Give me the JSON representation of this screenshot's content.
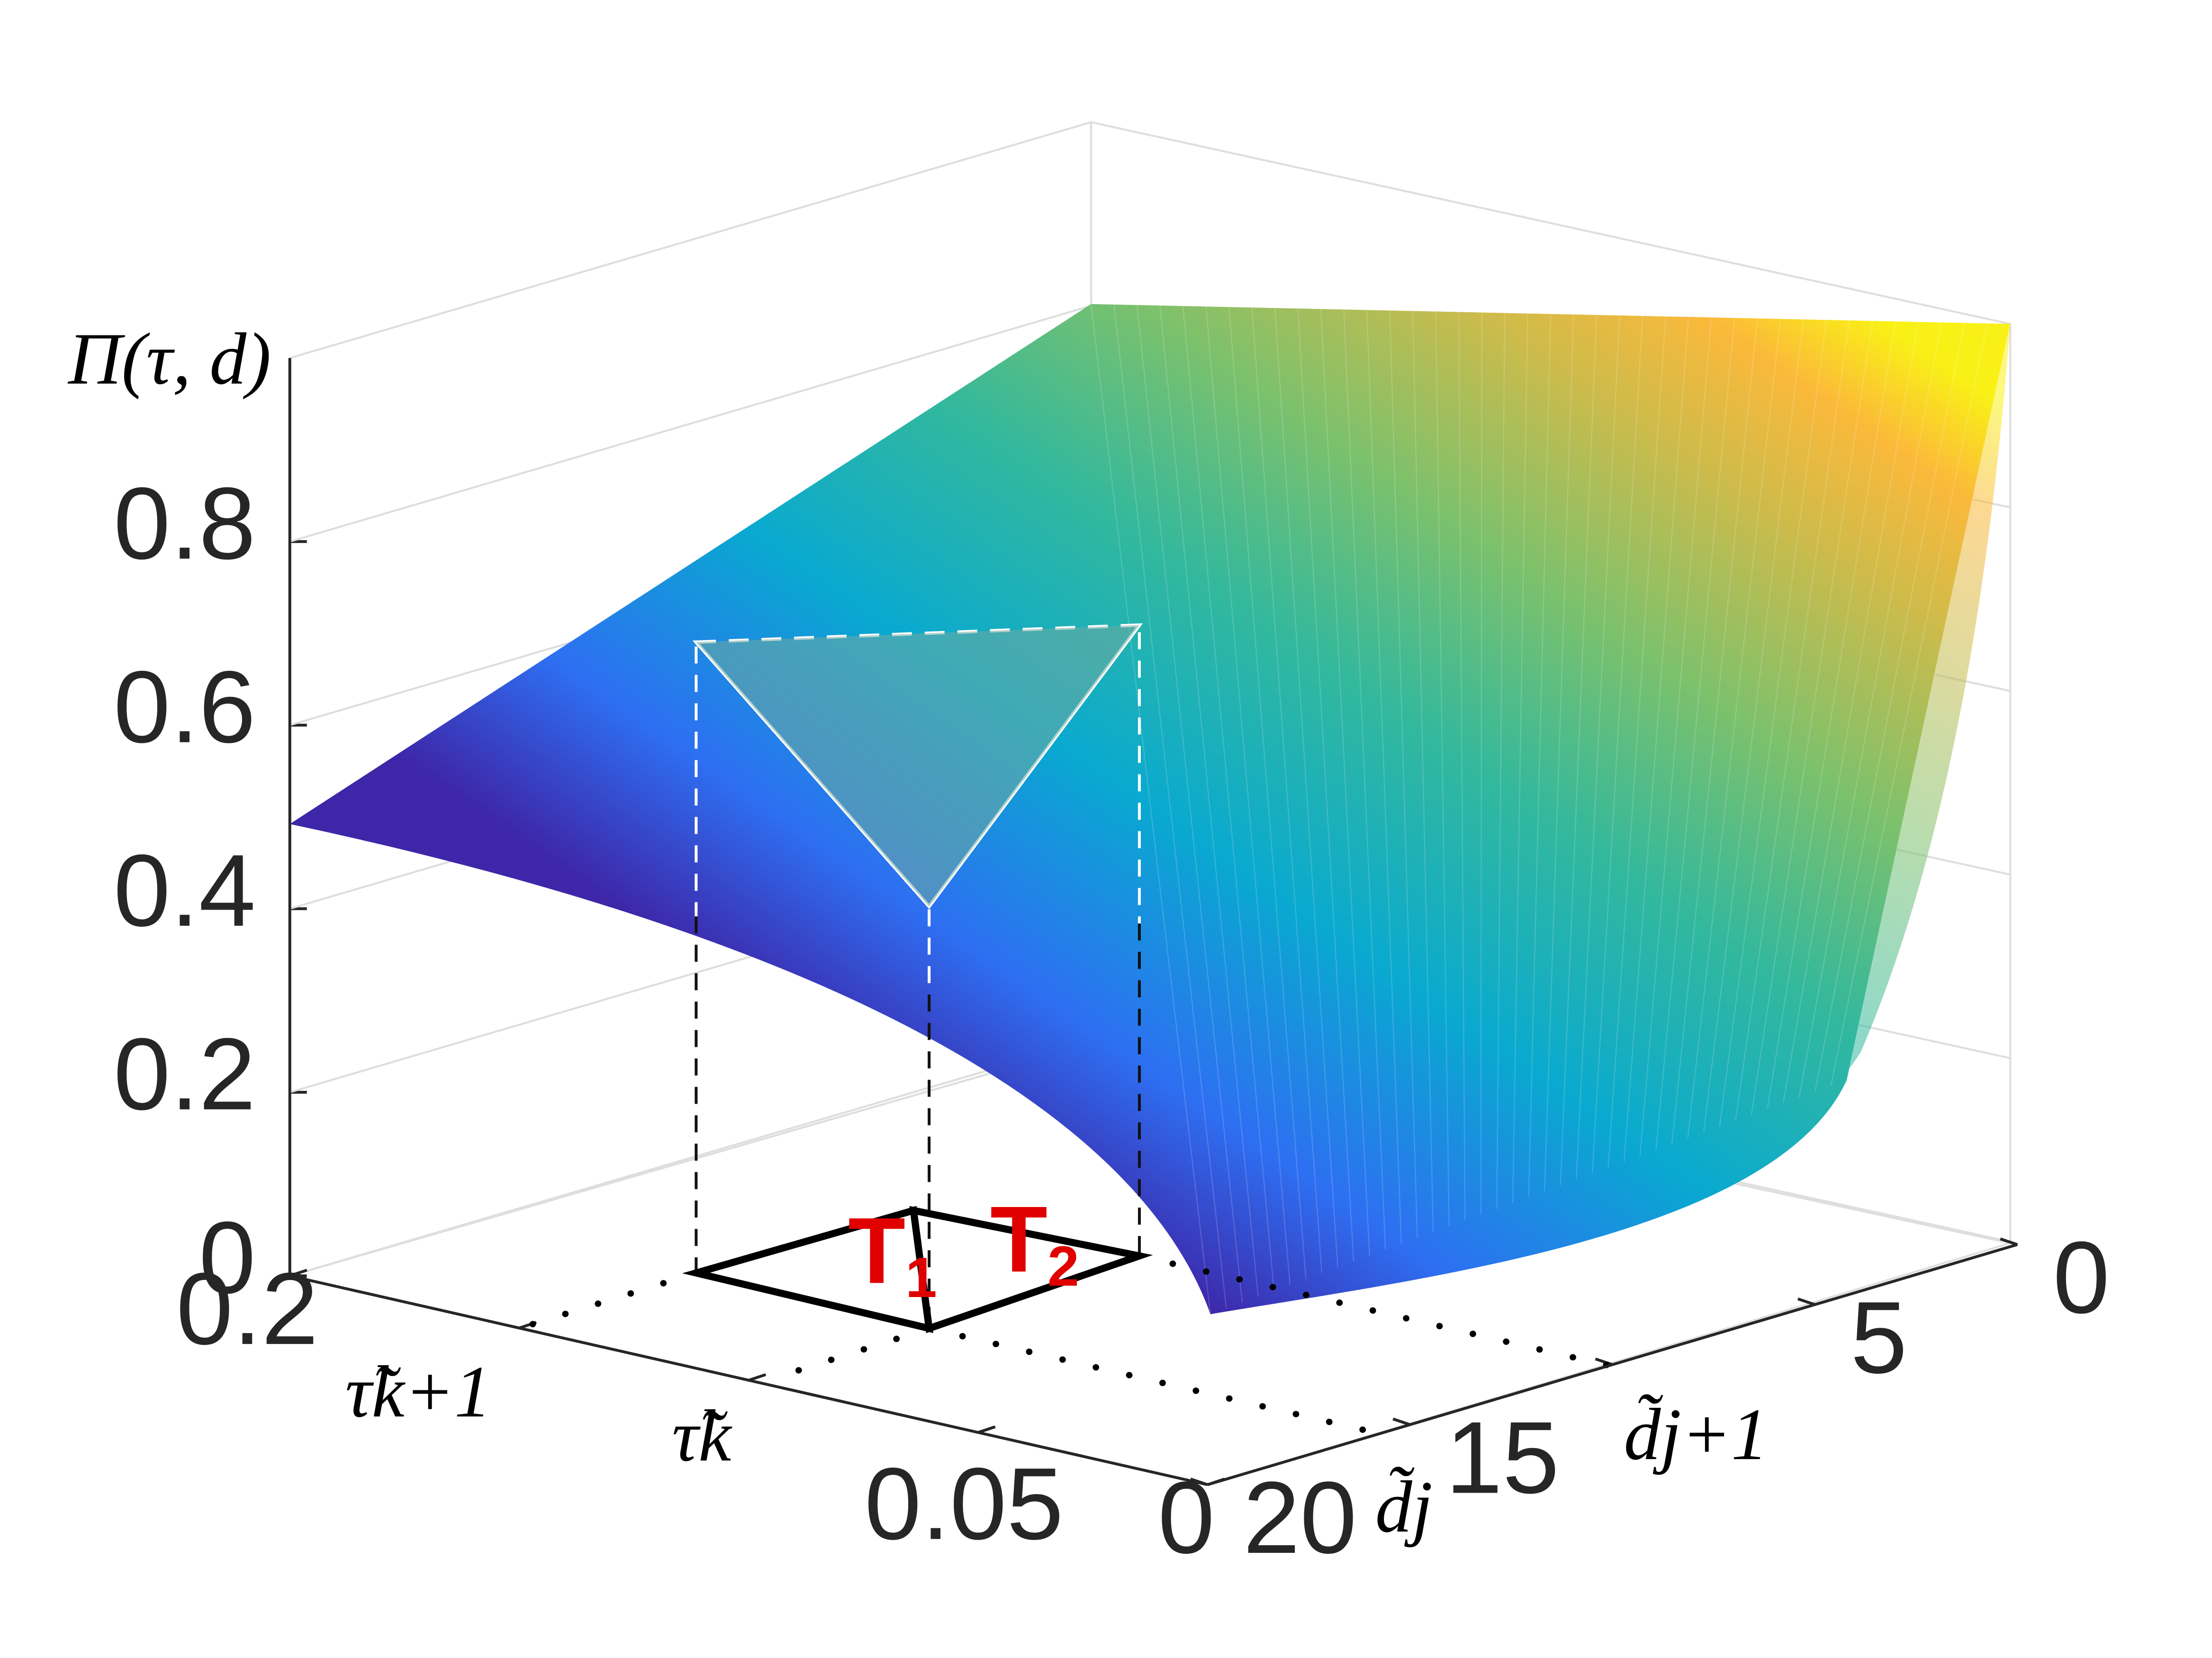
{
  "chart_data": {
    "type": "surface",
    "title": "",
    "zlabel": "Π(τ, d)",
    "zlim": [
      0,
      1
    ],
    "z_ticks": [
      "0",
      "0.2",
      "0.4",
      "0.6",
      "0.8"
    ],
    "tau_axis": {
      "range": [
        0,
        0.2
      ],
      "ticks": [
        "0",
        "0.05",
        "0.2"
      ],
      "annotations": [
        "τ̃k+1",
        "τ̃k"
      ]
    },
    "d_axis": {
      "range": [
        0,
        20
      ],
      "ticks": [
        "0",
        "5",
        "15",
        "20"
      ],
      "annotations": [
        "d̃j+1",
        "d̃j"
      ]
    },
    "surface_corners": [
      {
        "tau": 0.2,
        "d": 20,
        "z": 0.49
      },
      {
        "tau": 0.2,
        "d": 0,
        "z": 0.85
      },
      {
        "tau": 0,
        "d": 0,
        "z": 1.0
      },
      {
        "tau": 0,
        "d": 20,
        "z": 0.0
      }
    ],
    "triangles": [
      {
        "name": "T1",
        "label": "T",
        "subscript": "1"
      },
      {
        "name": "T2",
        "label": "T",
        "subscript": "2"
      }
    ],
    "grid": true,
    "colormap": [
      "#3e26a8",
      "#2e6ff2",
      "#09a9d0",
      "#32b89d",
      "#7cc16c",
      "#cfbb4a",
      "#fbb93a",
      "#f9f116"
    ]
  }
}
